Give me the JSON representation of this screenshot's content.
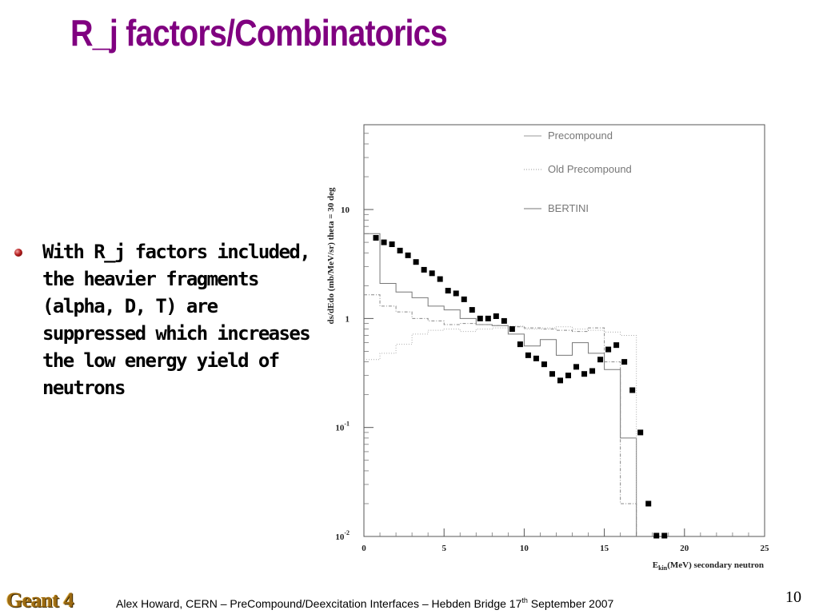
{
  "slide": {
    "title": "R_j factors/Combinatorics",
    "bullet": "With R_j factors included, the heavier fragments (alpha, D, T) are suppressed which increases the low energy yield of neutrons",
    "footer_logo": "Geant 4",
    "footer_pre": "Alex Howard, CERN – PreCompound/Deexcitation Interfaces – Hebden Bridge 17",
    "footer_sup": "th",
    "footer_post": " September 2007",
    "page_number": "10"
  },
  "chart_data": {
    "type": "line",
    "yscale": "log",
    "ylabel": "ds/dEdo (mb/MeV/sr) theta = 30 deg",
    "xlabel_prefix": "E",
    "xlabel_sub": "kin",
    "xlabel_rest": "(MeV) secondary neutron",
    "xlim": [
      0,
      25
    ],
    "ylim": [
      0.01,
      60
    ],
    "x_ticks": [
      "0",
      "5",
      "10",
      "15",
      "20",
      "25"
    ],
    "y_ticks": [
      {
        "base": "10",
        "exp": "-2"
      },
      {
        "base": "10",
        "exp": "-1"
      },
      {
        "base": "1",
        "exp": ""
      },
      {
        "base": "10",
        "exp": ""
      }
    ],
    "legend": [
      "Precompound",
      "Old Precompound",
      "BERTINI"
    ],
    "series": [
      {
        "name": "Precompound",
        "style": "solid",
        "bins": [
          0,
          1,
          2,
          3,
          4,
          5,
          6,
          7,
          8,
          9,
          10,
          11,
          12,
          13,
          14,
          15,
          16,
          17
        ],
        "values": [
          6.0,
          2.1,
          1.75,
          1.55,
          1.3,
          1.2,
          1.0,
          0.88,
          0.86,
          0.72,
          0.56,
          0.64,
          0.46,
          0.6,
          0.48,
          0.34,
          0.08
        ]
      },
      {
        "name": "Old Precompound",
        "style": "dotted",
        "bins": [
          0,
          1,
          2,
          3,
          4,
          5,
          6,
          7,
          8,
          9,
          10,
          11,
          12,
          13,
          14,
          15,
          16,
          17
        ],
        "values": [
          0.42,
          0.48,
          0.58,
          0.72,
          0.78,
          0.8,
          0.76,
          0.8,
          0.82,
          0.85,
          0.8,
          0.82,
          0.84,
          0.8,
          0.78,
          0.75,
          0.7
        ]
      },
      {
        "name": "BERTINI",
        "style": "dashdot",
        "bins": [
          0,
          1,
          2,
          3,
          4,
          5,
          6,
          7,
          8,
          9,
          10,
          11,
          12,
          13,
          14,
          15,
          16,
          17
        ],
        "values": [
          1.65,
          1.3,
          1.15,
          1.0,
          0.95,
          0.88,
          0.9,
          0.88,
          0.86,
          0.84,
          0.82,
          0.8,
          0.78,
          0.76,
          0.82,
          0.4,
          0.02
        ]
      },
      {
        "name": "Data",
        "style": "markers",
        "x": [
          0.75,
          1.25,
          1.75,
          2.25,
          2.75,
          3.25,
          3.75,
          4.25,
          4.75,
          5.25,
          5.75,
          6.25,
          6.75,
          7.25,
          7.75,
          8.25,
          8.75,
          9.25,
          9.75,
          10.25,
          10.75,
          11.25,
          11.75,
          12.25,
          12.75,
          13.25,
          13.75,
          14.25,
          14.75,
          15.25,
          15.75,
          16.25,
          16.75,
          17.25,
          17.75,
          18.25,
          18.75
        ],
        "y": [
          5.5,
          5.0,
          4.8,
          4.2,
          3.8,
          3.3,
          2.8,
          2.6,
          2.3,
          1.8,
          1.7,
          1.5,
          1.2,
          1.0,
          1.0,
          1.05,
          0.95,
          0.8,
          0.58,
          0.46,
          0.43,
          0.38,
          0.31,
          0.27,
          0.3,
          0.36,
          0.31,
          0.33,
          0.42,
          0.52,
          0.57,
          0.4,
          0.22,
          0.09,
          0.02,
          0.0099,
          0.0094
        ]
      }
    ]
  }
}
